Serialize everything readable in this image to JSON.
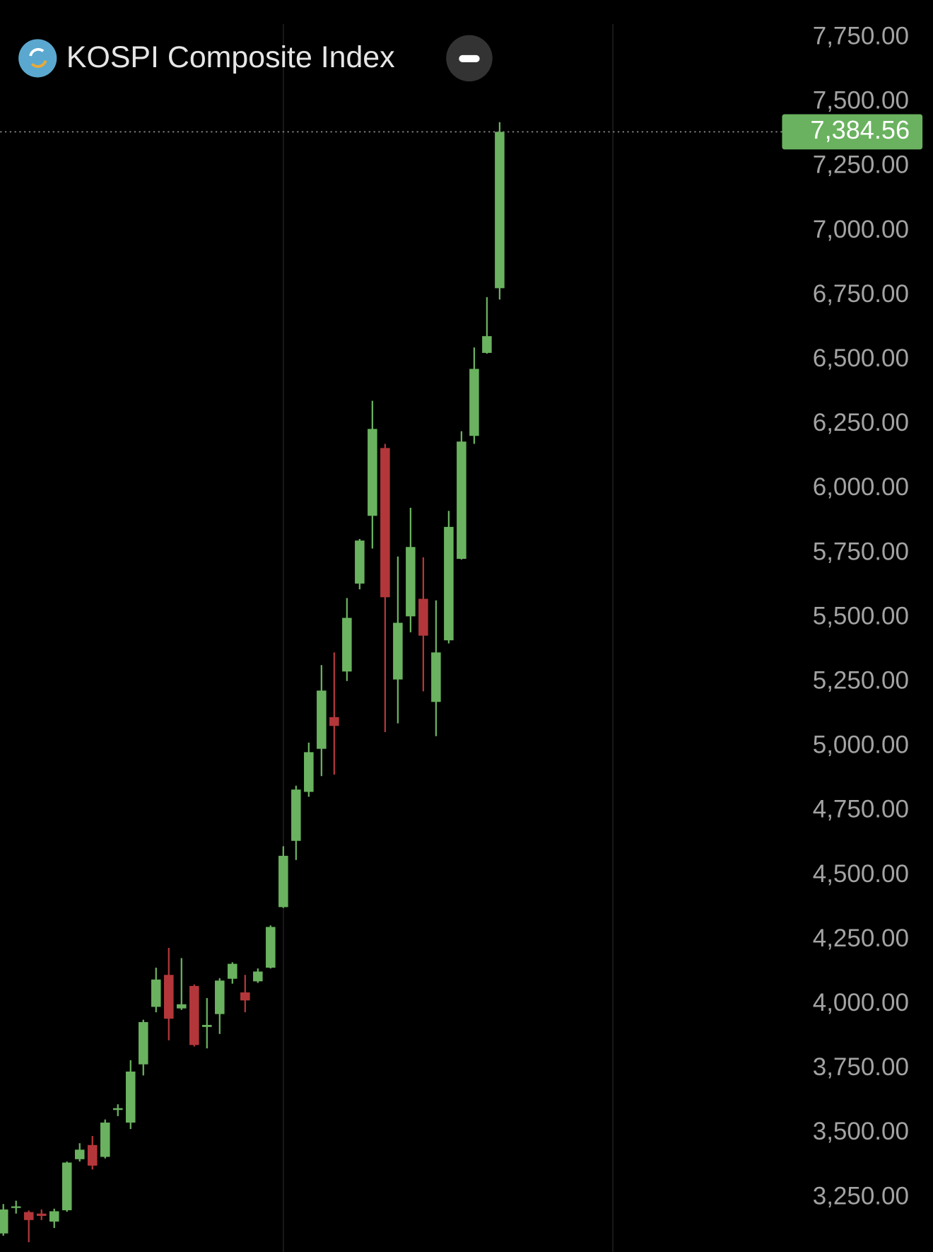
{
  "chart_data": {
    "type": "candlestick",
    "title": "KOSPI Composite Index",
    "up_color": "#6ab25f",
    "down_color": "#b3373a",
    "ylim": [
      3039,
      7896
    ],
    "yticks": [
      {
        "value": 3250,
        "label": "3,250.00"
      },
      {
        "value": 3500,
        "label": "3,500.00"
      },
      {
        "value": 3750,
        "label": "3,750.00"
      },
      {
        "value": 4000,
        "label": "4,000.00"
      },
      {
        "value": 4250,
        "label": "4,250.00"
      },
      {
        "value": 4500,
        "label": "4,500.00"
      },
      {
        "value": 4750,
        "label": "4,750.00"
      },
      {
        "value": 5000,
        "label": "5,000.00"
      },
      {
        "value": 5250,
        "label": "5,250.00"
      },
      {
        "value": 5500,
        "label": "5,500.00"
      },
      {
        "value": 5750,
        "label": "5,750.00"
      },
      {
        "value": 6000,
        "label": "6,000.00"
      },
      {
        "value": 6250,
        "label": "6,250.00"
      },
      {
        "value": 6500,
        "label": "6,500.00"
      },
      {
        "value": 6750,
        "label": "6,750.00"
      },
      {
        "value": 7000,
        "label": "7,000.00"
      },
      {
        "value": 7250,
        "label": "7,250.00"
      },
      {
        "value": 7500,
        "label": "7,500.00"
      },
      {
        "value": 7750,
        "label": "7,750.00"
      }
    ],
    "last_price": {
      "value": 7384.56,
      "label": "7,384.56"
    },
    "open": [
      3111,
      3210,
      3194,
      3188,
      3157,
      3201,
      3399,
      3454,
      3408,
      3590,
      3541,
      3767,
      3990,
      4114,
      3984,
      4071,
      3912,
      3962,
      4099,
      4046,
      4089,
      4142,
      4377,
      4634,
      4824,
      4991,
      5114,
      5291,
      5632,
      5895,
      6158,
      5260,
      5505,
      5573,
      5173,
      5412,
      5728,
      6205,
      6527,
      6778
    ],
    "high": [
      3225,
      3238,
      3200,
      3204,
      3207,
      3390,
      3461,
      3489,
      3553,
      3612,
      3783,
      3940,
      4142,
      4219,
      4179,
      4077,
      4024,
      4101,
      4163,
      4114,
      4139,
      4306,
      4613,
      4848,
      5015,
      5316,
      5365,
      5576,
      5805,
      6341,
      6174,
      5737,
      5926,
      5734,
      5567,
      5914,
      6223,
      6548,
      6743,
      7422
    ],
    "low": [
      3102,
      3188,
      3077,
      3163,
      3132,
      3195,
      3390,
      3359,
      3402,
      3566,
      3516,
      3724,
      3969,
      3860,
      3978,
      3836,
      3829,
      3885,
      4080,
      3969,
      4083,
      4139,
      4374,
      4560,
      4805,
      4885,
      4891,
      5254,
      5610,
      5768,
      5056,
      5090,
      5443,
      5214,
      5040,
      5400,
      5725,
      6174,
      6524,
      6734
    ],
    "close": [
      3204,
      3216,
      3163,
      3179,
      3197,
      3386,
      3436,
      3374,
      3541,
      3597,
      3739,
      3931,
      4096,
      3944,
      4000,
      3842,
      3920,
      4092,
      4157,
      4015,
      4127,
      4300,
      4576,
      4833,
      4978,
      5217,
      5080,
      5499,
      5799,
      6232,
      5579,
      5480,
      5774,
      5430,
      5365,
      5852,
      6183,
      6465,
      6592,
      7384.56
    ]
  }
}
